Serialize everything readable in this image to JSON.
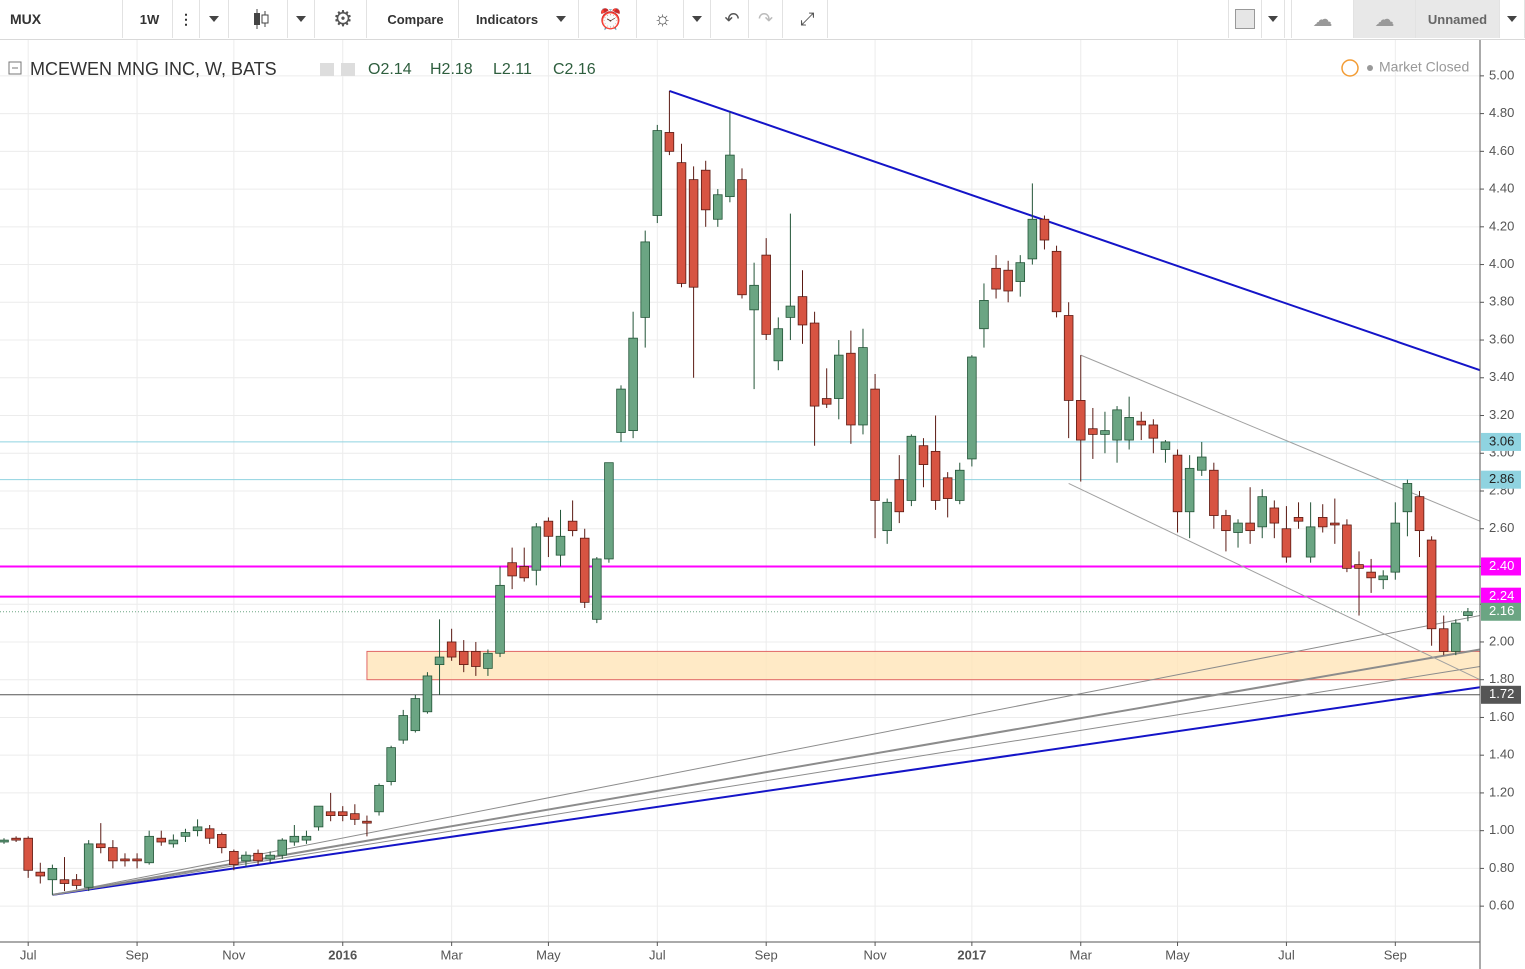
{
  "toolbar": {
    "symbol": "MUX",
    "interval": "1W",
    "compare": "Compare",
    "indicators": "Indicators",
    "layout_name": "Unnamed"
  },
  "chart_data": {
    "type": "candlestick",
    "title": "MCEWEN MNG INC, W, BATS",
    "ohlc_legend": [
      "O2.14",
      "H2.18",
      "L2.11",
      "C2.16"
    ],
    "status": "Market Closed",
    "up_color": "#6ba583",
    "down_color": "#d75442",
    "up_border": "#225437",
    "down_border": "#5b1a13",
    "open": [
      0.94,
      0.96,
      0.96,
      0.78,
      0.74,
      0.74,
      0.74,
      0.7,
      0.93,
      0.91,
      0.85,
      0.85,
      0.83,
      0.96,
      0.93,
      0.97,
      1.0,
      1.01,
      0.98,
      0.89,
      0.84,
      0.88,
      0.85,
      0.87,
      0.94,
      0.95,
      1.02,
      1.1,
      1.1,
      1.09,
      1.05,
      1.1,
      1.26,
      1.48,
      1.53,
      1.63,
      1.88,
      2.0,
      1.95,
      1.95,
      1.86,
      1.94,
      2.42,
      2.4,
      2.38,
      2.64,
      2.46,
      2.64,
      2.55,
      2.12,
      2.44,
      3.11,
      3.12,
      3.72,
      4.26,
      4.7,
      4.54,
      4.45,
      4.5,
      4.24,
      4.36,
      4.45,
      3.76,
      4.05,
      3.49,
      3.72,
      3.83,
      3.69,
      3.29,
      3.29,
      3.53,
      3.15,
      3.34,
      2.59,
      2.86,
      2.75,
      3.04,
      3.01,
      2.87,
      2.75,
      2.97,
      3.66,
      3.98,
      3.97,
      3.91,
      4.03,
      4.24,
      4.07,
      3.73,
      3.28,
      3.13,
      3.1,
      3.07,
      3.07,
      3.17,
      3.15,
      3.02,
      2.99,
      2.69,
      2.91,
      2.91,
      2.67,
      2.58,
      2.63,
      2.61,
      2.71,
      2.6,
      2.66,
      2.45,
      2.66,
      2.63,
      2.62,
      2.41,
      2.37,
      2.33,
      2.37,
      2.69,
      2.77,
      2.54,
      2.07,
      1.95,
      2.14
    ],
    "high": [
      0.96,
      0.97,
      0.97,
      0.83,
      0.82,
      0.86,
      0.77,
      0.95,
      1.04,
      0.95,
      0.88,
      0.88,
      1.0,
      1.0,
      0.98,
      1.01,
      1.06,
      1.03,
      0.99,
      0.9,
      0.89,
      0.9,
      0.89,
      0.96,
      1.03,
      1.0,
      1.13,
      1.2,
      1.13,
      1.14,
      1.08,
      1.25,
      1.45,
      1.64,
      1.72,
      1.84,
      2.12,
      2.07,
      2.01,
      2.0,
      1.96,
      2.4,
      2.5,
      2.5,
      2.63,
      2.66,
      2.7,
      2.75,
      2.6,
      2.45,
      2.95,
      3.36,
      3.75,
      4.18,
      4.74,
      4.92,
      4.64,
      4.52,
      4.55,
      4.4,
      4.81,
      4.51,
      4.01,
      4.14,
      3.72,
      4.27,
      3.97,
      3.75,
      3.45,
      3.6,
      3.65,
      3.66,
      3.42,
      2.76,
      2.99,
      3.1,
      3.08,
      3.2,
      2.9,
      2.95,
      3.52,
      3.9,
      4.05,
      4.02,
      4.05,
      4.43,
      4.26,
      4.1,
      3.8,
      3.52,
      3.24,
      3.22,
      3.25,
      3.3,
      3.22,
      3.18,
      3.07,
      3.02,
      2.99,
      3.06,
      2.95,
      2.7,
      2.65,
      2.82,
      2.81,
      2.75,
      2.72,
      2.74,
      2.74,
      2.73,
      2.76,
      2.65,
      2.48,
      2.44,
      2.38,
      2.74,
      2.86,
      2.8,
      2.56,
      2.14,
      2.12,
      2.18
    ],
    "low": [
      0.93,
      0.94,
      0.75,
      0.72,
      0.66,
      0.68,
      0.69,
      0.68,
      0.88,
      0.8,
      0.81,
      0.8,
      0.82,
      0.92,
      0.91,
      0.94,
      0.97,
      0.93,
      0.88,
      0.79,
      0.81,
      0.82,
      0.83,
      0.85,
      0.92,
      0.93,
      1.0,
      1.05,
      1.05,
      1.03,
      0.97,
      1.08,
      1.24,
      1.46,
      1.52,
      1.62,
      1.72,
      1.9,
      1.84,
      1.82,
      1.82,
      1.92,
      2.28,
      2.32,
      2.3,
      2.45,
      2.4,
      2.56,
      2.18,
      2.1,
      2.42,
      3.06,
      3.08,
      3.56,
      4.22,
      4.58,
      3.88,
      3.4,
      4.2,
      4.2,
      4.33,
      3.82,
      3.34,
      3.6,
      3.44,
      3.6,
      3.58,
      3.04,
      3.24,
      3.18,
      3.05,
      3.1,
      2.55,
      2.52,
      2.63,
      2.72,
      2.82,
      2.7,
      2.66,
      2.73,
      2.93,
      3.56,
      3.82,
      3.8,
      3.83,
      4.0,
      4.08,
      3.72,
      3.08,
      2.85,
      2.97,
      3.0,
      2.95,
      3.02,
      3.07,
      3.0,
      2.95,
      2.58,
      2.55,
      2.88,
      2.6,
      2.48,
      2.5,
      2.52,
      2.55,
      2.55,
      2.42,
      2.6,
      2.42,
      2.58,
      2.52,
      2.37,
      2.14,
      2.26,
      2.28,
      2.33,
      2.56,
      2.45,
      1.98,
      1.93,
      1.93,
      2.11
    ],
    "close": [
      0.95,
      0.95,
      0.79,
      0.76,
      0.8,
      0.72,
      0.71,
      0.93,
      0.91,
      0.84,
      0.84,
      0.84,
      0.97,
      0.94,
      0.95,
      0.99,
      1.02,
      0.96,
      0.91,
      0.82,
      0.87,
      0.84,
      0.87,
      0.95,
      0.97,
      0.97,
      1.13,
      1.08,
      1.08,
      1.06,
      1.04,
      1.24,
      1.44,
      1.61,
      1.7,
      1.82,
      1.92,
      1.92,
      1.88,
      1.87,
      1.94,
      2.3,
      2.35,
      2.34,
      2.61,
      2.56,
      2.56,
      2.59,
      2.21,
      2.44,
      2.95,
      3.34,
      3.61,
      4.12,
      4.71,
      4.6,
      3.9,
      3.88,
      4.29,
      4.37,
      4.58,
      3.84,
      3.89,
      3.63,
      3.66,
      3.78,
      3.68,
      3.25,
      3.26,
      3.52,
      3.15,
      3.56,
      2.75,
      2.74,
      2.69,
      3.09,
      2.94,
      2.75,
      2.76,
      2.91,
      3.51,
      3.81,
      3.87,
      3.86,
      4.01,
      4.24,
      4.13,
      3.75,
      3.28,
      3.07,
      3.1,
      3.12,
      3.23,
      3.19,
      3.15,
      3.08,
      3.06,
      2.69,
      2.92,
      2.98,
      2.67,
      2.59,
      2.63,
      2.59,
      2.77,
      2.63,
      2.45,
      2.64,
      2.61,
      2.61,
      2.62,
      2.39,
      2.39,
      2.34,
      2.35,
      2.63,
      2.84,
      2.59,
      2.07,
      1.95,
      2.1,
      2.16
    ],
    "xlim": [
      -0.33,
      122
    ],
    "xticks": [
      {
        "value": 2,
        "label": "Jul"
      },
      {
        "value": 11,
        "label": "Sep"
      },
      {
        "value": 19,
        "label": "Nov"
      },
      {
        "value": 28,
        "label": "2016"
      },
      {
        "value": 37,
        "label": "Mar"
      },
      {
        "value": 45,
        "label": "May"
      },
      {
        "value": 54,
        "label": "Jul"
      },
      {
        "value": 63,
        "label": "Sep"
      },
      {
        "value": 72,
        "label": "Nov"
      },
      {
        "value": 80,
        "label": "2017"
      },
      {
        "value": 89,
        "label": "Mar"
      },
      {
        "value": 97,
        "label": "May"
      },
      {
        "value": 106,
        "label": "Jul"
      },
      {
        "value": 115,
        "label": "Sep"
      }
    ],
    "ylim": [
      0.41,
      5.19
    ],
    "yticks": [
      {
        "value": 0.6,
        "label": "0.60"
      },
      {
        "value": 0.8,
        "label": "0.80"
      },
      {
        "value": 1.0,
        "label": "1.00"
      },
      {
        "value": 1.2,
        "label": "1.20"
      },
      {
        "value": 1.4,
        "label": "1.40"
      },
      {
        "value": 1.6,
        "label": "1.60"
      },
      {
        "value": 1.8,
        "label": "1.80"
      },
      {
        "value": 2.0,
        "label": "2.00"
      },
      {
        "value": 2.2,
        "label": "2.20"
      },
      {
        "value": 2.4,
        "label": "2.40"
      },
      {
        "value": 2.6,
        "label": "2.60"
      },
      {
        "value": 2.8,
        "label": "2.80"
      },
      {
        "value": 3.0,
        "label": "3.00"
      },
      {
        "value": 3.2,
        "label": "3.20"
      },
      {
        "value": 3.4,
        "label": "3.40"
      },
      {
        "value": 3.6,
        "label": "3.60"
      },
      {
        "value": 3.8,
        "label": "3.80"
      },
      {
        "value": 4.0,
        "label": "4.00"
      },
      {
        "value": 4.2,
        "label": "4.20"
      },
      {
        "value": 4.4,
        "label": "4.40"
      },
      {
        "value": 4.6,
        "label": "4.60"
      },
      {
        "value": 4.8,
        "label": "4.80"
      },
      {
        "value": 5.0,
        "label": "5.00"
      }
    ],
    "grid": true,
    "levels": [
      {
        "value": 3.06,
        "label": "3.06",
        "color": "#8fd3e0",
        "text_color": "#222",
        "width": 1,
        "dash": false
      },
      {
        "value": 2.86,
        "label": "2.86",
        "color": "#8fd3e0",
        "text_color": "#222",
        "width": 1,
        "dash": false
      },
      {
        "value": 2.4,
        "label": "2.40",
        "color": "#ff00ff",
        "text_color": "#fff",
        "width": 2,
        "dash": false
      },
      {
        "value": 2.24,
        "label": "2.24",
        "color": "#ff00ff",
        "text_color": "#fff",
        "width": 2,
        "dash": false
      },
      {
        "value": 2.16,
        "label": "2.16",
        "color": "#6ba583",
        "text_color": "#fff",
        "width": 1,
        "dash": true
      },
      {
        "value": 1.72,
        "label": "1.72",
        "color": "#555555",
        "text_color": "#fff",
        "width": 1,
        "dash": false
      }
    ],
    "trendlines": [
      {
        "color": "#1414c8",
        "width": 2,
        "points": [
          [
            55,
            4.92
          ],
          [
            122,
            3.44
          ]
        ]
      },
      {
        "color": "#1414c8",
        "width": 2,
        "points": [
          [
            4,
            0.66
          ],
          [
            122,
            1.76
          ]
        ]
      },
      {
        "color": "#8c8c8c",
        "width": 1,
        "points": [
          [
            4,
            0.66
          ],
          [
            122,
            2.14
          ]
        ]
      },
      {
        "color": "#8c8c8c",
        "width": 2,
        "points": [
          [
            4,
            0.66
          ],
          [
            122,
            1.96
          ]
        ]
      },
      {
        "color": "#8c8c8c",
        "width": 1,
        "points": [
          [
            4,
            0.66
          ],
          [
            122,
            1.87
          ]
        ]
      },
      {
        "color": "#a0a0a0",
        "width": 1,
        "points": [
          [
            89,
            3.52
          ],
          [
            122,
            2.64
          ]
        ]
      },
      {
        "color": "#a0a0a0",
        "width": 1,
        "points": [
          [
            88,
            2.84
          ],
          [
            122,
            1.8
          ]
        ]
      }
    ],
    "zones": [
      {
        "start": 30,
        "end": 122,
        "top": 1.95,
        "bottom": 1.8,
        "fill": "#ffe5b8",
        "stroke": "#e06666"
      }
    ]
  }
}
